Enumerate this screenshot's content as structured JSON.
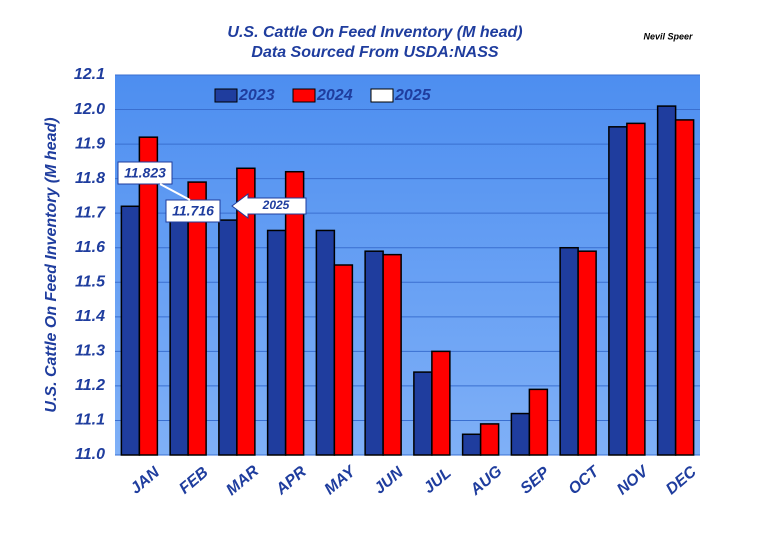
{
  "chart_data": {
    "type": "bar",
    "title": "U.S. Cattle On Feed Inventory (M head)",
    "subtitle": "Data Sourced From USDA:NASS",
    "author": "Nevil Speer",
    "y_label": "U.S. Cattle On Feed Inventory (M head)",
    "annotation": "2025",
    "categories": [
      "JAN",
      "FEB",
      "MAR",
      "APR",
      "MAY",
      "JUN",
      "JUL",
      "AUG",
      "SEP",
      "OCT",
      "NOV",
      "DEC"
    ],
    "series": [
      {
        "name": "2023",
        "color": "#1f3d9e",
        "values": [
          11.72,
          11.71,
          11.68,
          11.65,
          11.65,
          11.59,
          11.24,
          11.06,
          11.12,
          11.6,
          11.95,
          12.01
        ]
      },
      {
        "name": "2024",
        "color": "#ff0000",
        "values": [
          11.92,
          11.79,
          11.83,
          11.82,
          11.55,
          11.58,
          11.3,
          11.09,
          11.19,
          11.59,
          11.96,
          11.97
        ]
      },
      {
        "name": "2025",
        "color": "#ffffff",
        "values": [
          11.823,
          11.716,
          null,
          null,
          null,
          null,
          null,
          null,
          null,
          null,
          null,
          null
        ]
      }
    ],
    "ylim": [
      11.0,
      12.1
    ],
    "yticks": [
      {
        "value": 11.0,
        "label": "11.0"
      },
      11.1,
      11.2,
      11.3,
      11.4,
      11.5,
      11.6,
      11.7,
      11.8,
      11.9,
      {
        "value": 12.0,
        "label": "12.0"
      },
      12.1
    ],
    "grid": true
  }
}
